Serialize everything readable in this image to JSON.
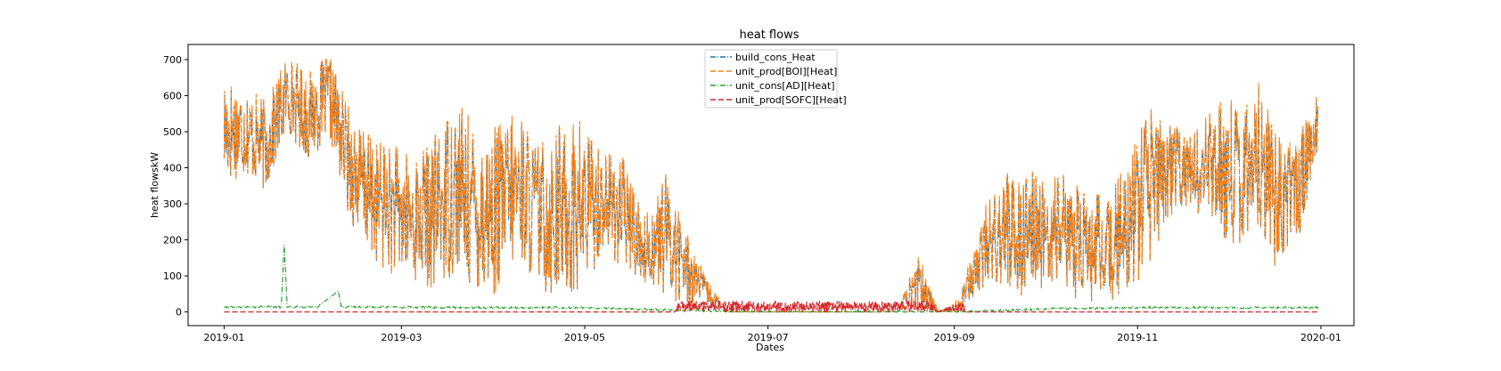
{
  "chart_data": {
    "type": "line",
    "title": "heat flows",
    "xlabel": "Dates",
    "ylabel": "heat flowskW",
    "x_range": [
      "2018-12-20",
      "2020-01-12"
    ],
    "ylim": [
      -38,
      742
    ],
    "x_ticks": [
      "2019-01",
      "2019-03",
      "2019-05",
      "2019-07",
      "2019-09",
      "2019-11",
      "2020-01"
    ],
    "y_ticks": [
      0,
      100,
      200,
      300,
      400,
      500,
      600,
      700
    ],
    "grid": false,
    "legend_position": "upper center",
    "series": [
      {
        "name": "build_cons_Heat",
        "color": "#1f77b4",
        "dash": "dashdot",
        "x": [
          "2019-01-01",
          "2019-01-08",
          "2019-01-15",
          "2019-01-22",
          "2019-01-29",
          "2019-02-05",
          "2019-02-12",
          "2019-02-19",
          "2019-02-26",
          "2019-03-05",
          "2019-03-12",
          "2019-03-19",
          "2019-03-26",
          "2019-04-02",
          "2019-04-09",
          "2019-04-16",
          "2019-04-23",
          "2019-04-30",
          "2019-05-07",
          "2019-05-14",
          "2019-05-21",
          "2019-05-28",
          "2019-06-04",
          "2019-06-11",
          "2019-06-18",
          "2019-06-25",
          "2019-07-02",
          "2019-07-09",
          "2019-07-16",
          "2019-07-23",
          "2019-07-30",
          "2019-08-06",
          "2019-08-13",
          "2019-08-20",
          "2019-08-27",
          "2019-09-03",
          "2019-09-10",
          "2019-09-17",
          "2019-09-24",
          "2019-10-01",
          "2019-10-08",
          "2019-10-15",
          "2019-10-22",
          "2019-10-29",
          "2019-11-05",
          "2019-11-12",
          "2019-11-19",
          "2019-11-26",
          "2019-12-03",
          "2019-12-10",
          "2019-12-17",
          "2019-12-24",
          "2019-12-31"
        ],
        "y_low": [
          350,
          380,
          330,
          500,
          420,
          480,
          250,
          150,
          100,
          80,
          60,
          100,
          50,
          40,
          150,
          60,
          30,
          40,
          170,
          120,
          80,
          40,
          20,
          20,
          0,
          0,
          0,
          0,
          0,
          0,
          0,
          0,
          0,
          0,
          0,
          0,
          60,
          80,
          40,
          60,
          40,
          30,
          0,
          60,
          120,
          270,
          300,
          200,
          150,
          260,
          120,
          170,
          450
        ],
        "y_high": [
          660,
          620,
          580,
          710,
          660,
          710,
          550,
          480,
          460,
          420,
          480,
          600,
          500,
          510,
          550,
          460,
          520,
          530,
          450,
          420,
          260,
          380,
          220,
          80,
          0,
          0,
          0,
          0,
          0,
          0,
          0,
          0,
          0,
          160,
          0,
          40,
          270,
          370,
          410,
          360,
          380,
          330,
          310,
          420,
          560,
          520,
          480,
          560,
          610,
          660,
          500,
          470,
          610
        ]
      },
      {
        "name": "unit_prod[BOI][Heat]",
        "color": "#ff7f0e",
        "dash": "dashed",
        "x": [
          "2019-01-01",
          "2019-01-08",
          "2019-01-15",
          "2019-01-22",
          "2019-01-29",
          "2019-02-05",
          "2019-02-12",
          "2019-02-19",
          "2019-02-26",
          "2019-03-05",
          "2019-03-12",
          "2019-03-19",
          "2019-03-26",
          "2019-04-02",
          "2019-04-09",
          "2019-04-16",
          "2019-04-23",
          "2019-04-30",
          "2019-05-07",
          "2019-05-14",
          "2019-05-21",
          "2019-05-28",
          "2019-06-04",
          "2019-06-11",
          "2019-06-18",
          "2019-06-25",
          "2019-07-02",
          "2019-07-09",
          "2019-07-16",
          "2019-07-23",
          "2019-07-30",
          "2019-08-06",
          "2019-08-13",
          "2019-08-20",
          "2019-08-27",
          "2019-09-03",
          "2019-09-10",
          "2019-09-17",
          "2019-09-24",
          "2019-10-01",
          "2019-10-08",
          "2019-10-15",
          "2019-10-22",
          "2019-10-29",
          "2019-11-05",
          "2019-11-12",
          "2019-11-19",
          "2019-11-26",
          "2019-12-03",
          "2019-12-10",
          "2019-12-17",
          "2019-12-24",
          "2019-12-31"
        ],
        "y_low": [
          350,
          380,
          330,
          500,
          420,
          480,
          250,
          150,
          100,
          80,
          60,
          100,
          50,
          40,
          150,
          60,
          30,
          40,
          170,
          120,
          80,
          40,
          20,
          20,
          0,
          0,
          0,
          0,
          0,
          0,
          0,
          0,
          0,
          0,
          0,
          0,
          60,
          80,
          40,
          60,
          40,
          30,
          0,
          60,
          120,
          270,
          300,
          200,
          150,
          260,
          120,
          170,
          450
        ],
        "y_high": [
          665,
          625,
          585,
          712,
          665,
          712,
          555,
          485,
          465,
          425,
          485,
          605,
          505,
          515,
          555,
          465,
          525,
          535,
          455,
          425,
          265,
          385,
          225,
          85,
          0,
          0,
          0,
          0,
          0,
          0,
          0,
          0,
          0,
          165,
          0,
          45,
          275,
          375,
          415,
          365,
          385,
          335,
          315,
          425,
          565,
          525,
          485,
          565,
          615,
          668,
          505,
          475,
          615
        ]
      },
      {
        "name": "unit_cons[AD][Heat]",
        "color": "#2ca02c",
        "dash": "dashdot",
        "x": [
          "2019-01-01",
          "2019-01-15",
          "2019-01-20",
          "2019-01-21",
          "2019-01-22",
          "2019-02-01",
          "2019-02-08",
          "2019-02-09",
          "2019-02-15",
          "2019-03-15",
          "2019-05-01",
          "2019-06-01",
          "2019-07-01",
          "2019-08-01",
          "2019-09-01",
          "2019-10-01",
          "2019-11-01",
          "2019-12-01",
          "2019-12-31"
        ],
        "y": [
          14,
          14,
          14,
          185,
          14,
          14,
          58,
          14,
          14,
          12,
          12,
          5,
          0,
          0,
          0,
          8,
          12,
          12,
          12
        ]
      },
      {
        "name": "unit_prod[SOFC][Heat]",
        "color": "#d62728",
        "dash": "dashed",
        "x": [
          "2019-01-01",
          "2019-05-31",
          "2019-06-01",
          "2019-08-25",
          "2019-08-26",
          "2019-09-04",
          "2019-09-05",
          "2019-10-15",
          "2019-12-31"
        ],
        "y": [
          0,
          0,
          30,
          30,
          0,
          30,
          0,
          0,
          0
        ]
      }
    ]
  }
}
